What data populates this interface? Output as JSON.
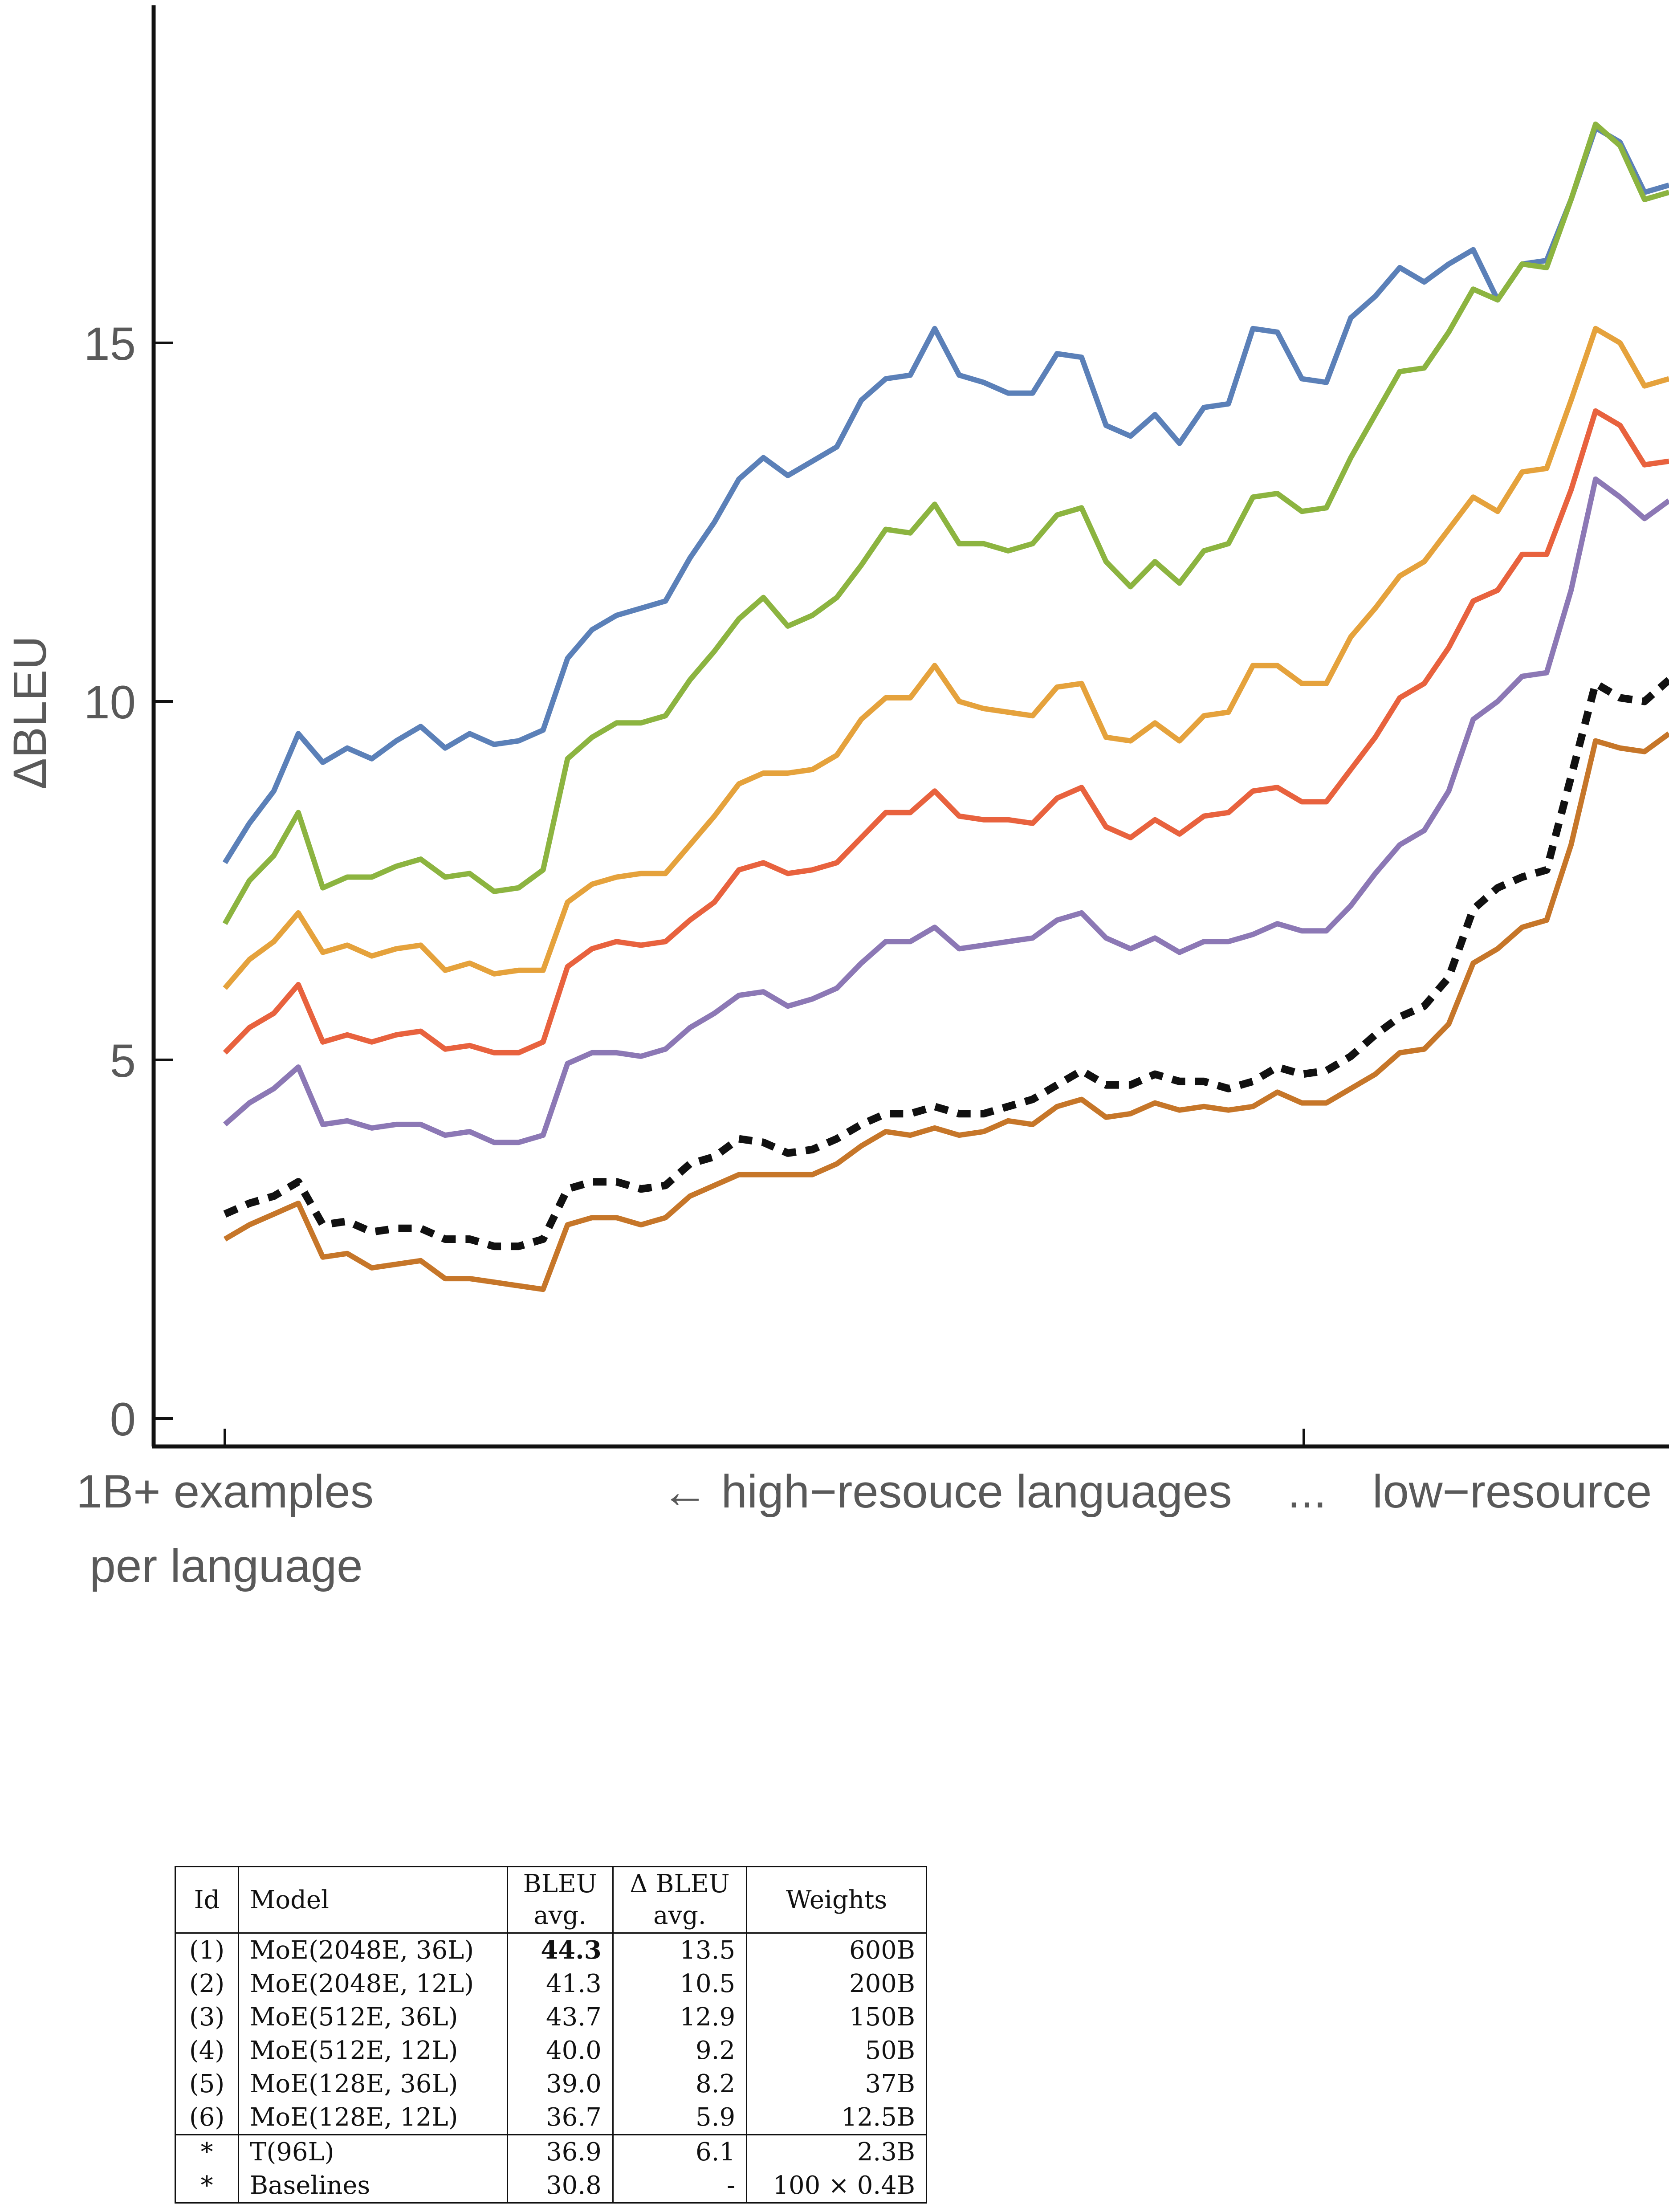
{
  "chart_data": {
    "type": "line",
    "ylabel": "ΔBLEU",
    "ylim": [
      0,
      20
    ],
    "yticks": [
      0,
      5,
      10,
      15
    ],
    "x_tick_labels": [
      "1B+ examples",
      "per language",
      "← high−resouce languages",
      "...",
      "low−resource"
    ],
    "grid": false,
    "series": [
      {
        "color": "#5b80b8",
        "values": [
          7.75,
          8.3,
          8.75,
          9.55,
          9.15,
          9.35,
          9.2,
          9.45,
          9.65,
          9.35,
          9.55,
          9.4,
          9.45,
          9.6,
          10.6,
          11.0,
          11.2,
          11.3,
          11.4,
          12.0,
          12.5,
          13.1,
          13.4,
          13.15,
          13.35,
          13.55,
          14.2,
          14.5,
          14.55,
          15.2,
          14.55,
          14.45,
          14.3,
          14.3,
          14.85,
          14.8,
          13.85,
          13.7,
          14.0,
          13.6,
          14.1,
          14.15,
          15.2,
          15.15,
          14.5,
          14.45,
          15.35,
          15.65,
          16.05,
          15.85,
          16.1,
          16.3,
          15.6,
          16.1,
          16.15,
          17.0,
          18.0,
          17.8,
          17.1,
          17.2
        ]
      },
      {
        "color": "#8cb440",
        "values": [
          6.9,
          7.5,
          7.85,
          8.45,
          7.4,
          7.55,
          7.55,
          7.7,
          7.8,
          7.55,
          7.6,
          7.35,
          7.4,
          7.65,
          9.2,
          9.5,
          9.7,
          9.7,
          9.8,
          10.3,
          10.7,
          11.15,
          11.45,
          11.05,
          11.2,
          11.45,
          11.9,
          12.4,
          12.35,
          12.75,
          12.2,
          12.2,
          12.1,
          12.2,
          12.6,
          12.7,
          11.95,
          11.6,
          11.95,
          11.65,
          12.1,
          12.2,
          12.85,
          12.9,
          12.65,
          12.7,
          13.4,
          14.0,
          14.6,
          14.65,
          15.15,
          15.75,
          15.6,
          16.1,
          16.05,
          17.0,
          18.05,
          17.75,
          17.0,
          17.1
        ]
      },
      {
        "color": "#e5a23c",
        "values": [
          6.0,
          6.4,
          6.65,
          7.05,
          6.5,
          6.6,
          6.45,
          6.55,
          6.6,
          6.25,
          6.35,
          6.2,
          6.25,
          6.25,
          7.2,
          7.45,
          7.55,
          7.6,
          7.6,
          8.0,
          8.4,
          8.85,
          9.0,
          9.0,
          9.05,
          9.25,
          9.75,
          10.05,
          10.05,
          10.5,
          10.0,
          9.9,
          9.85,
          9.8,
          10.2,
          10.25,
          9.5,
          9.45,
          9.7,
          9.45,
          9.8,
          9.85,
          10.5,
          10.5,
          10.25,
          10.25,
          10.9,
          11.3,
          11.75,
          11.95,
          12.4,
          12.85,
          12.65,
          13.2,
          13.25,
          14.2,
          15.2,
          15.0,
          14.4,
          14.5
        ]
      },
      {
        "color": "#e8623e",
        "values": [
          5.1,
          5.45,
          5.65,
          6.05,
          5.25,
          5.35,
          5.25,
          5.35,
          5.4,
          5.15,
          5.2,
          5.1,
          5.1,
          5.25,
          6.3,
          6.55,
          6.65,
          6.6,
          6.65,
          6.95,
          7.2,
          7.65,
          7.75,
          7.6,
          7.65,
          7.75,
          8.1,
          8.45,
          8.45,
          8.75,
          8.4,
          8.35,
          8.35,
          8.3,
          8.65,
          8.8,
          8.25,
          8.1,
          8.35,
          8.15,
          8.4,
          8.45,
          8.75,
          8.8,
          8.6,
          8.6,
          9.05,
          9.5,
          10.05,
          10.25,
          10.75,
          11.4,
          11.55,
          12.05,
          12.05,
          12.95,
          14.05,
          13.85,
          13.3,
          13.35
        ]
      },
      {
        "color": "#8c78b5",
        "values": [
          4.1,
          4.4,
          4.6,
          4.9,
          4.1,
          4.15,
          4.05,
          4.1,
          4.1,
          3.95,
          4.0,
          3.85,
          3.85,
          3.95,
          4.95,
          5.1,
          5.1,
          5.05,
          5.15,
          5.45,
          5.65,
          5.9,
          5.95,
          5.75,
          5.85,
          6.0,
          6.35,
          6.65,
          6.65,
          6.85,
          6.55,
          6.6,
          6.65,
          6.7,
          6.95,
          7.05,
          6.7,
          6.55,
          6.7,
          6.5,
          6.65,
          6.65,
          6.75,
          6.9,
          6.8,
          6.8,
          7.15,
          7.6,
          8.0,
          8.2,
          8.75,
          9.75,
          10.0,
          10.35,
          10.4,
          11.55,
          13.1,
          12.85,
          12.55,
          12.8
        ]
      },
      {
        "color": "#111111",
        "dashed": true,
        "values": [
          2.85,
          3.0,
          3.1,
          3.3,
          2.7,
          2.75,
          2.6,
          2.65,
          2.65,
          2.5,
          2.5,
          2.4,
          2.4,
          2.5,
          3.2,
          3.3,
          3.3,
          3.2,
          3.25,
          3.55,
          3.65,
          3.9,
          3.85,
          3.7,
          3.75,
          3.9,
          4.1,
          4.25,
          4.25,
          4.35,
          4.25,
          4.25,
          4.35,
          4.45,
          4.65,
          4.85,
          4.65,
          4.65,
          4.8,
          4.7,
          4.7,
          4.6,
          4.7,
          4.9,
          4.8,
          4.85,
          5.05,
          5.35,
          5.6,
          5.75,
          6.15,
          7.1,
          7.4,
          7.55,
          7.65,
          8.95,
          10.25,
          10.05,
          10.0,
          10.3
        ]
      },
      {
        "color": "#c67629",
        "values": [
          2.5,
          2.7,
          2.85,
          3.0,
          2.25,
          2.3,
          2.1,
          2.15,
          2.2,
          1.95,
          1.95,
          1.9,
          1.85,
          1.8,
          2.7,
          2.8,
          2.8,
          2.7,
          2.8,
          3.1,
          3.25,
          3.4,
          3.4,
          3.4,
          3.4,
          3.55,
          3.8,
          4.0,
          3.95,
          4.05,
          3.95,
          4.0,
          4.15,
          4.1,
          4.35,
          4.45,
          4.2,
          4.25,
          4.4,
          4.3,
          4.35,
          4.3,
          4.35,
          4.55,
          4.4,
          4.4,
          4.6,
          4.8,
          5.1,
          5.15,
          5.5,
          6.35,
          6.55,
          6.85,
          6.95,
          8.0,
          9.45,
          9.35,
          9.3,
          9.55
        ]
      }
    ]
  },
  "table": {
    "headers": {
      "id": "Id",
      "model": "Model",
      "bleu": "BLEU",
      "bleu_sub": "avg.",
      "dbleu": "Δ BLEU",
      "dbleu_sub": "avg.",
      "weights": "Weights"
    },
    "rows": [
      {
        "id": "(1)",
        "model": "MoE(2048E, 36L)",
        "bleu": "44.3",
        "dbleu": "13.5",
        "weights": "600B"
      },
      {
        "id": "(2)",
        "model": "MoE(2048E, 12L)",
        "bleu": "41.3",
        "dbleu": "10.5",
        "weights": "200B"
      },
      {
        "id": "(3)",
        "model": "MoE(512E, 36L)",
        "bleu": "43.7",
        "dbleu": "12.9",
        "weights": "150B"
      },
      {
        "id": "(4)",
        "model": "MoE(512E, 12L)",
        "bleu": "40.0",
        "dbleu": "9.2",
        "weights": "50B"
      },
      {
        "id": "(5)",
        "model": "MoE(128E, 36L)",
        "bleu": "39.0",
        "dbleu": "8.2",
        "weights": "37B"
      },
      {
        "id": "(6)",
        "model": "MoE(128E, 12L)",
        "bleu": "36.7",
        "dbleu": "5.9",
        "weights": "12.5B"
      },
      {
        "id": "*",
        "model": "T(96L)",
        "bleu": "36.9",
        "dbleu": "6.1",
        "weights": "2.3B"
      },
      {
        "id": "*",
        "model": "Baselines",
        "bleu": "30.8",
        "dbleu": "-",
        "weights": "100 × 0.4B"
      }
    ]
  }
}
